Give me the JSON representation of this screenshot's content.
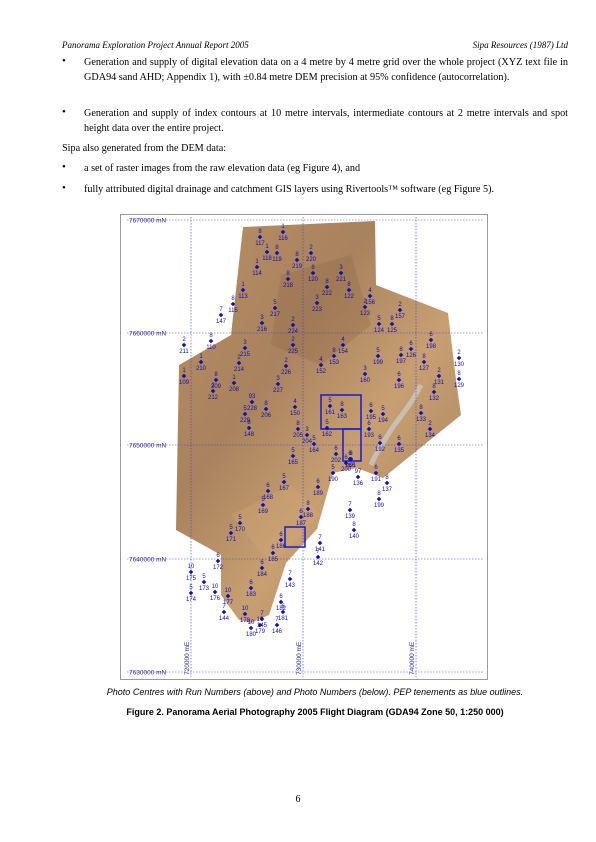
{
  "header": {
    "left": "Panorama Exploration Project Annual Report 2005",
    "right": "Sipa Resources (1987) Ltd"
  },
  "bullets_top": [
    "Generation and supply of digital elevation data on a 4 metre by 4 metre grid over the whole project (XYZ text file in GDA94 sand AHD; Appendix 1), with ±0.84 metre DEM precision at 95% confidence (autocorrelation).",
    "Generation and supply of index contours at 10 metre intervals, intermediate contours at 2 metre intervals and spot height data over the entire project."
  ],
  "intro": "Sipa also generated from the DEM data:",
  "bullets_bottom": [
    "a set of raster images from the raw elevation data (eg Figure 4), and",
    "fully attributed digital drainage and catchment GIS layers using Rivertools™ software (eg Figure 5)."
  ],
  "bullet_symbol": "•",
  "figure": {
    "northings": [
      "7670000 mN",
      "7660000 mN",
      "7650000 mN",
      "7640000 mN",
      "7630000 mN"
    ],
    "eastings": [
      "720000 mE",
      "730000 mE",
      "740000 mE"
    ],
    "grid_color": "#3a3adc",
    "point_color": "#1010b0",
    "tenement_color": "#1a1ad0",
    "photo_points": [
      {
        "run": "8",
        "photo": "117"
      },
      {
        "run": "1",
        "photo": "116"
      },
      {
        "run": "1",
        "photo": "118"
      },
      {
        "run": "8",
        "photo": "119"
      },
      {
        "run": "2",
        "photo": "220"
      },
      {
        "run": "8",
        "photo": "219"
      },
      {
        "run": "8",
        "photo": "120"
      },
      {
        "run": "3",
        "photo": "221"
      },
      {
        "run": "8",
        "photo": "222"
      },
      {
        "run": "8",
        "photo": "122"
      },
      {
        "run": "1",
        "photo": "114"
      },
      {
        "run": "8",
        "photo": "218"
      },
      {
        "run": "4",
        "photo": "156"
      },
      {
        "run": "1",
        "photo": "113"
      },
      {
        "run": "3",
        "photo": "223"
      },
      {
        "run": "2",
        "photo": "123"
      },
      {
        "run": "8",
        "photo": "115"
      },
      {
        "run": "5",
        "photo": "217"
      },
      {
        "run": "2",
        "photo": "157"
      },
      {
        "run": "3",
        "photo": "216"
      },
      {
        "run": "2",
        "photo": "224"
      },
      {
        "run": "8",
        "photo": "125"
      },
      {
        "run": "5",
        "photo": "124"
      },
      {
        "run": "6",
        "photo": "198"
      },
      {
        "run": "2",
        "photo": "211"
      },
      {
        "run": "8",
        "photo": "110"
      },
      {
        "run": "3",
        "photo": "215"
      },
      {
        "run": "2",
        "photo": "225"
      },
      {
        "run": "4",
        "photo": "154"
      },
      {
        "run": "8",
        "photo": "153"
      },
      {
        "run": "5",
        "photo": "199"
      },
      {
        "run": "6",
        "photo": "126"
      },
      {
        "run": "8",
        "photo": "197"
      },
      {
        "run": "2",
        "photo": "130"
      },
      {
        "run": "1",
        "photo": "210"
      },
      {
        "run": "2",
        "photo": "214"
      },
      {
        "run": "2",
        "photo": "226"
      },
      {
        "run": "4",
        "photo": "152"
      },
      {
        "run": "3",
        "photo": "160"
      },
      {
        "run": "8",
        "photo": "127"
      },
      {
        "run": "1",
        "photo": "109"
      },
      {
        "run": "8",
        "photo": "209"
      },
      {
        "run": "1",
        "photo": "208"
      },
      {
        "run": "3",
        "photo": "227"
      },
      {
        "run": "6",
        "photo": "196"
      },
      {
        "run": "2",
        "photo": "131"
      },
      {
        "run": "8",
        "photo": "129"
      },
      {
        "run": "2",
        "photo": "212"
      },
      {
        "run": "93",
        "photo": "228"
      },
      {
        "run": "5",
        "photo": "229"
      },
      {
        "run": "8",
        "photo": "206"
      },
      {
        "run": "4",
        "photo": "150"
      },
      {
        "run": "5",
        "photo": "161"
      },
      {
        "run": "6",
        "photo": "195"
      },
      {
        "run": "5",
        "photo": "194"
      },
      {
        "run": "8",
        "photo": "132"
      },
      {
        "run": "8",
        "photo": "148"
      },
      {
        "run": "8",
        "photo": "205"
      },
      {
        "run": "3",
        "photo": "204"
      },
      {
        "run": "5",
        "photo": "162"
      },
      {
        "run": "8",
        "photo": "163"
      },
      {
        "run": "6",
        "photo": "193"
      },
      {
        "run": "8",
        "photo": "133"
      },
      {
        "run": "2",
        "photo": "134"
      },
      {
        "run": "8",
        "photo": "201"
      },
      {
        "run": "5",
        "photo": "164"
      },
      {
        "run": "6",
        "photo": "192"
      },
      {
        "run": "6",
        "photo": "135"
      },
      {
        "run": "6",
        "photo": "202"
      },
      {
        "run": "6",
        "photo": "200"
      },
      {
        "run": "5",
        "photo": "165"
      },
      {
        "run": "6",
        "photo": "166"
      },
      {
        "run": "6",
        "photo": "191"
      },
      {
        "run": "97",
        "photo": "136"
      },
      {
        "run": "5",
        "photo": "190"
      },
      {
        "run": "8",
        "photo": "137"
      },
      {
        "run": "5",
        "photo": "167"
      },
      {
        "run": "6",
        "photo": "189"
      },
      {
        "run": "8",
        "photo": "199"
      },
      {
        "run": "6",
        "photo": "168"
      },
      {
        "run": "8",
        "photo": "188"
      },
      {
        "run": "7",
        "photo": "139"
      },
      {
        "run": "5",
        "photo": "169"
      },
      {
        "run": "6",
        "photo": "187"
      },
      {
        "run": "8",
        "photo": "140"
      },
      {
        "run": "5",
        "photo": "170"
      },
      {
        "run": "6",
        "photo": "186"
      },
      {
        "run": "7",
        "photo": "141"
      },
      {
        "run": "5",
        "photo": "171"
      },
      {
        "run": "6",
        "photo": "185"
      },
      {
        "run": "7",
        "photo": "142"
      },
      {
        "run": "6",
        "photo": "172"
      },
      {
        "run": "6",
        "photo": "184"
      },
      {
        "run": "10",
        "photo": "175"
      },
      {
        "run": "5",
        "photo": "173"
      },
      {
        "run": "10",
        "photo": "176"
      },
      {
        "run": "6",
        "photo": "183"
      },
      {
        "run": "7",
        "photo": "143"
      },
      {
        "run": "5",
        "photo": "174"
      },
      {
        "run": "10",
        "photo": "177"
      },
      {
        "run": "6",
        "photo": "182"
      },
      {
        "run": "7",
        "photo": "144"
      },
      {
        "run": "6",
        "photo": "181"
      },
      {
        "run": "10",
        "photo": "178"
      },
      {
        "run": "7",
        "photo": "145"
      },
      {
        "run": "10",
        "photo": "179"
      },
      {
        "run": "7",
        "photo": "146"
      },
      {
        "run": "10",
        "photo": "180"
      },
      {
        "run": "7",
        "photo": "147"
      }
    ]
  },
  "caption_italic": "Photo Centres with Run Numbers (above) and Photo Numbers (below).  PEP tenements as blue outlines.",
  "caption_bold": "Figure 2.  Panorama Aerial Photography 2005 Flight Diagram (GDA94 Zone 50, 1:250 000)",
  "page_number": "6"
}
